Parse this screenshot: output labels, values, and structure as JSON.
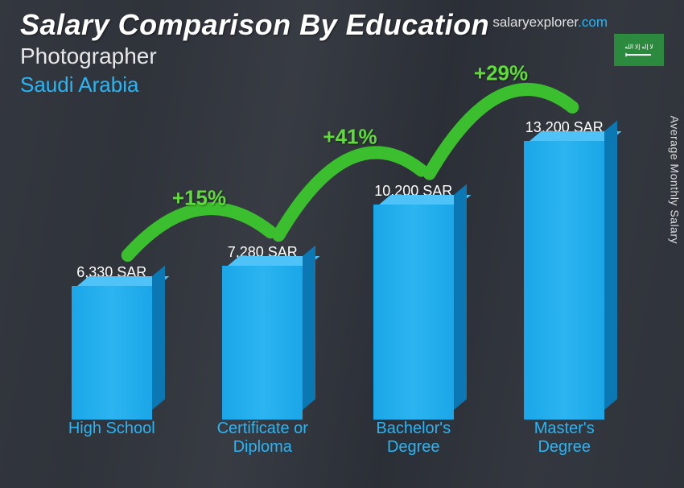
{
  "header": {
    "title": "Salary Comparison By Education",
    "role": "Photographer",
    "country": "Saudi Arabia",
    "brand_prefix": "salaryexplorer",
    "brand_suffix": ".com"
  },
  "yaxis_label": "Average Monthly Salary",
  "flag_color": "#2b8a3e",
  "chart": {
    "type": "bar-3d",
    "bar_colors": {
      "front": "#1aa6e8",
      "top": "#4fc3f7",
      "side": "#0b78b3"
    },
    "max_value": 13200,
    "bars": [
      {
        "category": "High School",
        "value": 6330,
        "label": "6,330 SAR"
      },
      {
        "category": "Certificate or\nDiploma",
        "value": 7280,
        "label": "7,280 SAR"
      },
      {
        "category": "Bachelor's\nDegree",
        "value": 10200,
        "label": "10,200 SAR"
      },
      {
        "category": "Master's\nDegree",
        "value": 13200,
        "label": "13,200 SAR"
      }
    ],
    "increases": [
      {
        "pct": "+15%"
      },
      {
        "pct": "+41%"
      },
      {
        "pct": "+29%"
      }
    ],
    "arc_color": "#3bbf2e",
    "arc_width": 16
  },
  "styling": {
    "title_fontsize": 36,
    "role_fontsize": 28,
    "country_fontsize": 26,
    "value_fontsize": 18,
    "category_fontsize": 20,
    "pct_fontsize": 26,
    "country_color": "#29b6f6",
    "category_color": "#29b6f6",
    "pct_color": "#5fdc3a",
    "background_overlay": "rgba(40,45,55,0.75)"
  }
}
